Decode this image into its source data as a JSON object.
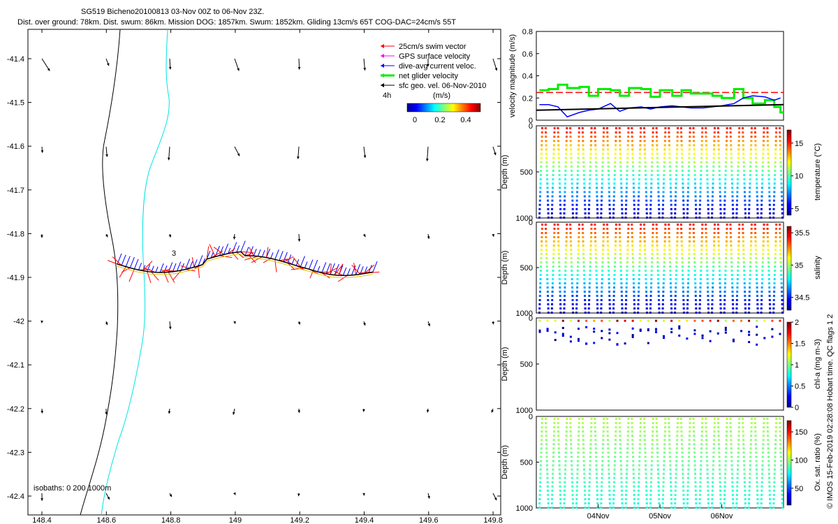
{
  "header": {
    "line1": "SG519 Bicheno20100813 03-Nov 00Z to 06-Nov 23Z.",
    "line2": "Dist. over ground: 78km. Dist. swum: 86km. Mission DOG: 1857km. Swum: 1852km. Gliding 13cm/s 65T COG-DAC=24cm/s 55T"
  },
  "legend": {
    "items": [
      {
        "label": "25cm/s swim vector",
        "color": "#ff0000"
      },
      {
        "label": "GPS surface velocity",
        "color": "#ff00ff"
      },
      {
        "label": "dive-avg current veloc.",
        "color": "#0000ff"
      },
      {
        "label": "net glider velocity",
        "color": "#00ee00"
      },
      {
        "label": "sfc geo. vel. 06-Nov-2010",
        "color": "#000000"
      }
    ],
    "scale_label": "4h",
    "colorbar_title": "(m/s)",
    "colorbar_ticks": [
      "0",
      "0.2",
      "0.4"
    ]
  },
  "map": {
    "isobaths_label": "isobaths: 0   200  1000m",
    "track_label": "3",
    "xticks": [
      "148.4",
      "148.6",
      "148.8",
      "149",
      "149.2",
      "149.4",
      "149.6",
      "149.8"
    ],
    "yticks": [
      "-41.4",
      "-41.5",
      "-41.6",
      "-41.7",
      "-41.8",
      "-41.9",
      "-42",
      "-42.1",
      "-42.2",
      "-42.3",
      "-42.4"
    ]
  },
  "side_note": "© IMOS 15-Feb-2019 02:28:08 Hobart time. QC flags 1  2",
  "time_axis": {
    "ticks": [
      "04Nov",
      "05Nov",
      "06Nov"
    ]
  },
  "colors": {
    "swim": "#ff0000",
    "current": "#0000ff",
    "net": "#00ee00",
    "isobath200": "#00e5e5",
    "geo": "#000000"
  },
  "chart_data": [
    {
      "type": "line",
      "ylabel": "velocity magnitude (m/s)",
      "ylim": [
        0,
        0.8
      ],
      "yticks": [
        "0",
        "0.2",
        "0.4",
        "0.6",
        "0.8"
      ],
      "series": [
        {
          "name": "25cm/s swim vector",
          "color": "#ff0000",
          "dashed": true,
          "x": [
            0,
            4
          ],
          "values": [
            0.25,
            0.25
          ]
        },
        {
          "name": "net glider velocity",
          "color": "#00ee00",
          "x": [
            0.05,
            0.2,
            0.35,
            0.5,
            0.7,
            0.85,
            1.0,
            1.2,
            1.35,
            1.5,
            1.7,
            1.85,
            2.0,
            2.2,
            2.35,
            2.5,
            2.7,
            2.85,
            3.0,
            3.2,
            3.35,
            3.5,
            3.7,
            3.85,
            3.95
          ],
          "values": [
            0.27,
            0.28,
            0.32,
            0.29,
            0.3,
            0.22,
            0.28,
            0.27,
            0.22,
            0.29,
            0.28,
            0.21,
            0.27,
            0.22,
            0.27,
            0.24,
            0.24,
            0.22,
            0.2,
            0.28,
            0.2,
            0.15,
            0.18,
            0.12,
            0.07
          ]
        },
        {
          "name": "dive-avg current veloc.",
          "color": "#0000ff",
          "x": [
            0.05,
            0.2,
            0.35,
            0.5,
            0.7,
            0.85,
            1.0,
            1.2,
            1.35,
            1.5,
            1.7,
            1.85,
            2.0,
            2.2,
            2.35,
            2.5,
            2.7,
            2.85,
            3.0,
            3.2,
            3.35,
            3.5,
            3.7,
            3.85,
            3.95
          ],
          "values": [
            0.14,
            0.14,
            0.12,
            0.03,
            0.07,
            0.09,
            0.1,
            0.15,
            0.08,
            0.11,
            0.12,
            0.1,
            0.12,
            0.13,
            0.12,
            0.11,
            0.11,
            0.12,
            0.13,
            0.15,
            0.2,
            0.22,
            0.21,
            0.18,
            0.2
          ]
        },
        {
          "name": "sfc geo. vel. 06-Nov-2010",
          "color": "#000000",
          "x": [
            0,
            4
          ],
          "values": [
            0.09,
            0.14
          ]
        }
      ]
    },
    {
      "type": "heatmap",
      "ylabel": "Depth (m)",
      "clabel": "temperature (°C)",
      "yticks": [
        "0",
        "500",
        "1000"
      ],
      "cticks": [
        "5",
        "10",
        "15"
      ],
      "crange": [
        4,
        17
      ],
      "ymax_profile": 1000
    },
    {
      "type": "heatmap",
      "ylabel": "Depth (m)",
      "clabel": "salinity",
      "yticks": [
        "0",
        "500",
        "1000"
      ],
      "cticks": [
        "34.5",
        "35",
        "35.5"
      ],
      "crange": [
        34.3,
        35.6
      ],
      "ymax_profile": 1000
    },
    {
      "type": "heatmap",
      "ylabel": "Depth (m)",
      "clabel": "chl-a (mg m-3)",
      "yticks": [
        "0",
        "500",
        "1000"
      ],
      "cticks": [
        "0",
        "0.5",
        "1",
        "1.5",
        "2"
      ],
      "crange": [
        0,
        2
      ],
      "ymax_profile": 300
    },
    {
      "type": "heatmap",
      "ylabel": "Depth (m)",
      "clabel": "Ox. sat. ratio (%)",
      "yticks": [
        "0",
        "500",
        "1000"
      ],
      "cticks": [
        "50",
        "100",
        "150"
      ],
      "crange": [
        20,
        170
      ],
      "ymax_profile": 1000
    }
  ]
}
